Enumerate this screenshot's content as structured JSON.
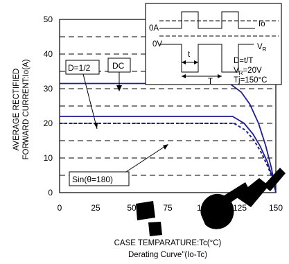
{
  "chart_data": {
    "type": "line",
    "title": "",
    "subtitle": "Derating Curve\"(Io-Tc)",
    "xlabel": "CASE TEMPARATURE:Tc(°C)",
    "ylabel_lines": [
      "AVERAGE RECTIFIED",
      "FORWARD CURRENT:Io(A)"
    ],
    "xlim": [
      0,
      150
    ],
    "ylim": [
      0,
      50
    ],
    "x_ticks": [
      "0",
      "25",
      "50",
      "75",
      "100",
      "125",
      "150"
    ],
    "y_ticks": [
      "0",
      "10",
      "20",
      "30",
      "40",
      "50"
    ],
    "grid": "horizontal dashed",
    "series": [
      {
        "name": "DC",
        "style": "solid",
        "color": "#1f1f8f",
        "points": [
          [
            0,
            31.5
          ],
          [
            118,
            31.5
          ],
          [
            126,
            29
          ],
          [
            132,
            25.5
          ],
          [
            138,
            20
          ],
          [
            143,
            13.5
          ],
          [
            147,
            7
          ],
          [
            150,
            0
          ]
        ]
      },
      {
        "name": "D=1/2",
        "style": "solid",
        "color": "#1f1f8f",
        "points": [
          [
            0,
            22
          ],
          [
            120,
            22
          ],
          [
            128,
            20
          ],
          [
            134,
            17
          ],
          [
            139,
            13.5
          ],
          [
            144,
            9
          ],
          [
            148,
            4
          ],
          [
            150,
            0
          ]
        ]
      },
      {
        "name": "Sin(θ=180)",
        "style": "dashed",
        "color": "#1f1f8f",
        "points": [
          [
            0,
            20
          ],
          [
            121,
            20
          ],
          [
            129,
            18
          ],
          [
            135,
            15
          ],
          [
            140,
            11.5
          ],
          [
            145,
            7
          ],
          [
            148,
            3.5
          ],
          [
            150,
            0
          ]
        ]
      }
    ],
    "annotations": {
      "dc": "DC",
      "d_half": "D=1/2",
      "sine": "Sin(θ=180)"
    },
    "inset": {
      "label_0a": "0A",
      "label_0v": "0V",
      "label_io": "Io",
      "label_vr_main": "V",
      "label_vr_sub": "R",
      "label_t_small": "t",
      "label_t_big": "T",
      "line_duty": "D=t/T",
      "line_vr_main": "V",
      "line_vr_sub": "R",
      "line_vr_value": "=20V",
      "line_tj": "Tj=150°C"
    },
    "watermark": "orange logo shapes"
  }
}
